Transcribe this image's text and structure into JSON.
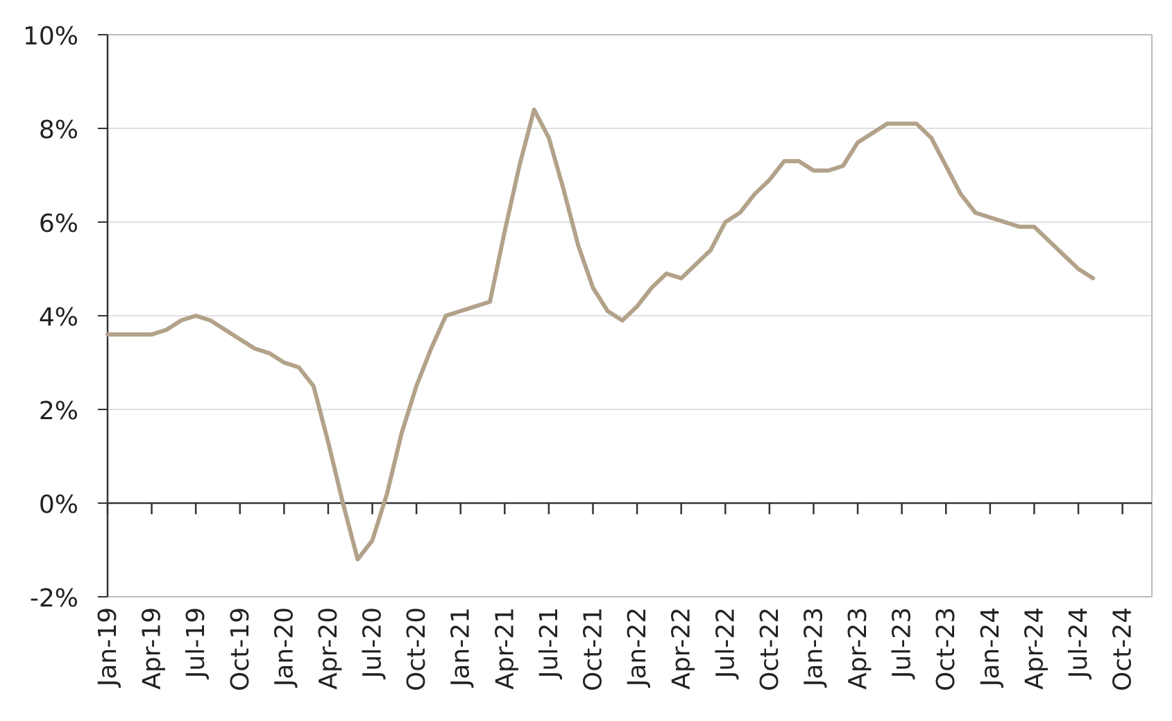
{
  "chart_data": {
    "type": "line",
    "title": "",
    "xlabel": "",
    "ylabel": "",
    "ylim": [
      -2,
      10
    ],
    "y_ticks": [
      "10%",
      "8%",
      "6%",
      "4%",
      "2%",
      "0%",
      "-2%"
    ],
    "x_ticks": [
      "Jan-19",
      "Apr-19",
      "Jul-19",
      "Oct-19",
      "Jan-20",
      "Apr-20",
      "Jul-20",
      "Oct-20",
      "Jan-21",
      "Apr-21",
      "Jul-21",
      "Oct-21",
      "Jan-22",
      "Apr-22",
      "Jul-22",
      "Oct-22",
      "Jan-23",
      "Apr-23",
      "Jul-23",
      "Oct-23",
      "Jan-24",
      "Apr-24",
      "Jul-24",
      "Oct-24"
    ],
    "grid": "horizontal",
    "colors": {
      "series": "#b3a28a",
      "grid": "#e0e0e0",
      "axis": "#333333",
      "frame": "#bdbdbd"
    },
    "series": [
      {
        "x": [
          "Jan-19",
          "Feb-19",
          "Mar-19",
          "Apr-19",
          "May-19",
          "Jun-19",
          "Jul-19",
          "Aug-19",
          "Sep-19",
          "Oct-19",
          "Nov-19",
          "Dec-19",
          "Jan-20",
          "Feb-20",
          "Mar-20",
          "Apr-20",
          "May-20",
          "Jun-20",
          "Jul-20",
          "Aug-20",
          "Sep-20",
          "Oct-20",
          "Nov-20",
          "Dec-20",
          "Jan-21",
          "Feb-21",
          "Mar-21",
          "Apr-21",
          "May-21",
          "Jun-21",
          "Jul-21",
          "Aug-21",
          "Sep-21",
          "Oct-21",
          "Nov-21",
          "Dec-21",
          "Jan-22",
          "Feb-22",
          "Mar-22",
          "Apr-22",
          "May-22",
          "Jun-22",
          "Jul-22",
          "Aug-22",
          "Sep-22",
          "Oct-22",
          "Nov-22",
          "Dec-22",
          "Jan-23",
          "Feb-23",
          "Mar-23",
          "Apr-23",
          "May-23",
          "Jun-23",
          "Jul-23",
          "Aug-23",
          "Sep-23",
          "Oct-23",
          "Nov-23",
          "Dec-23",
          "Jan-24",
          "Feb-24",
          "Mar-24",
          "Apr-24",
          "May-24",
          "Jun-24",
          "Jul-24",
          "Aug-24"
        ],
        "values": [
          3.6,
          3.6,
          3.6,
          3.6,
          3.7,
          3.9,
          4.0,
          3.9,
          3.7,
          3.5,
          3.3,
          3.2,
          3.0,
          2.9,
          2.5,
          1.3,
          0.0,
          -1.2,
          -0.8,
          0.2,
          1.5,
          2.5,
          3.3,
          4.0,
          4.1,
          4.2,
          4.3,
          5.8,
          7.2,
          8.4,
          7.8,
          6.7,
          5.5,
          4.6,
          4.1,
          3.9,
          4.2,
          4.6,
          4.9,
          4.8,
          5.1,
          5.4,
          6.0,
          6.2,
          6.6,
          6.9,
          7.3,
          7.3,
          7.1,
          7.1,
          7.2,
          7.7,
          7.9,
          8.1,
          8.1,
          8.1,
          7.8,
          7.2,
          6.6,
          6.2,
          6.1,
          6.0,
          5.9,
          5.9,
          5.6,
          5.3,
          5.0,
          4.8
        ]
      }
    ]
  }
}
